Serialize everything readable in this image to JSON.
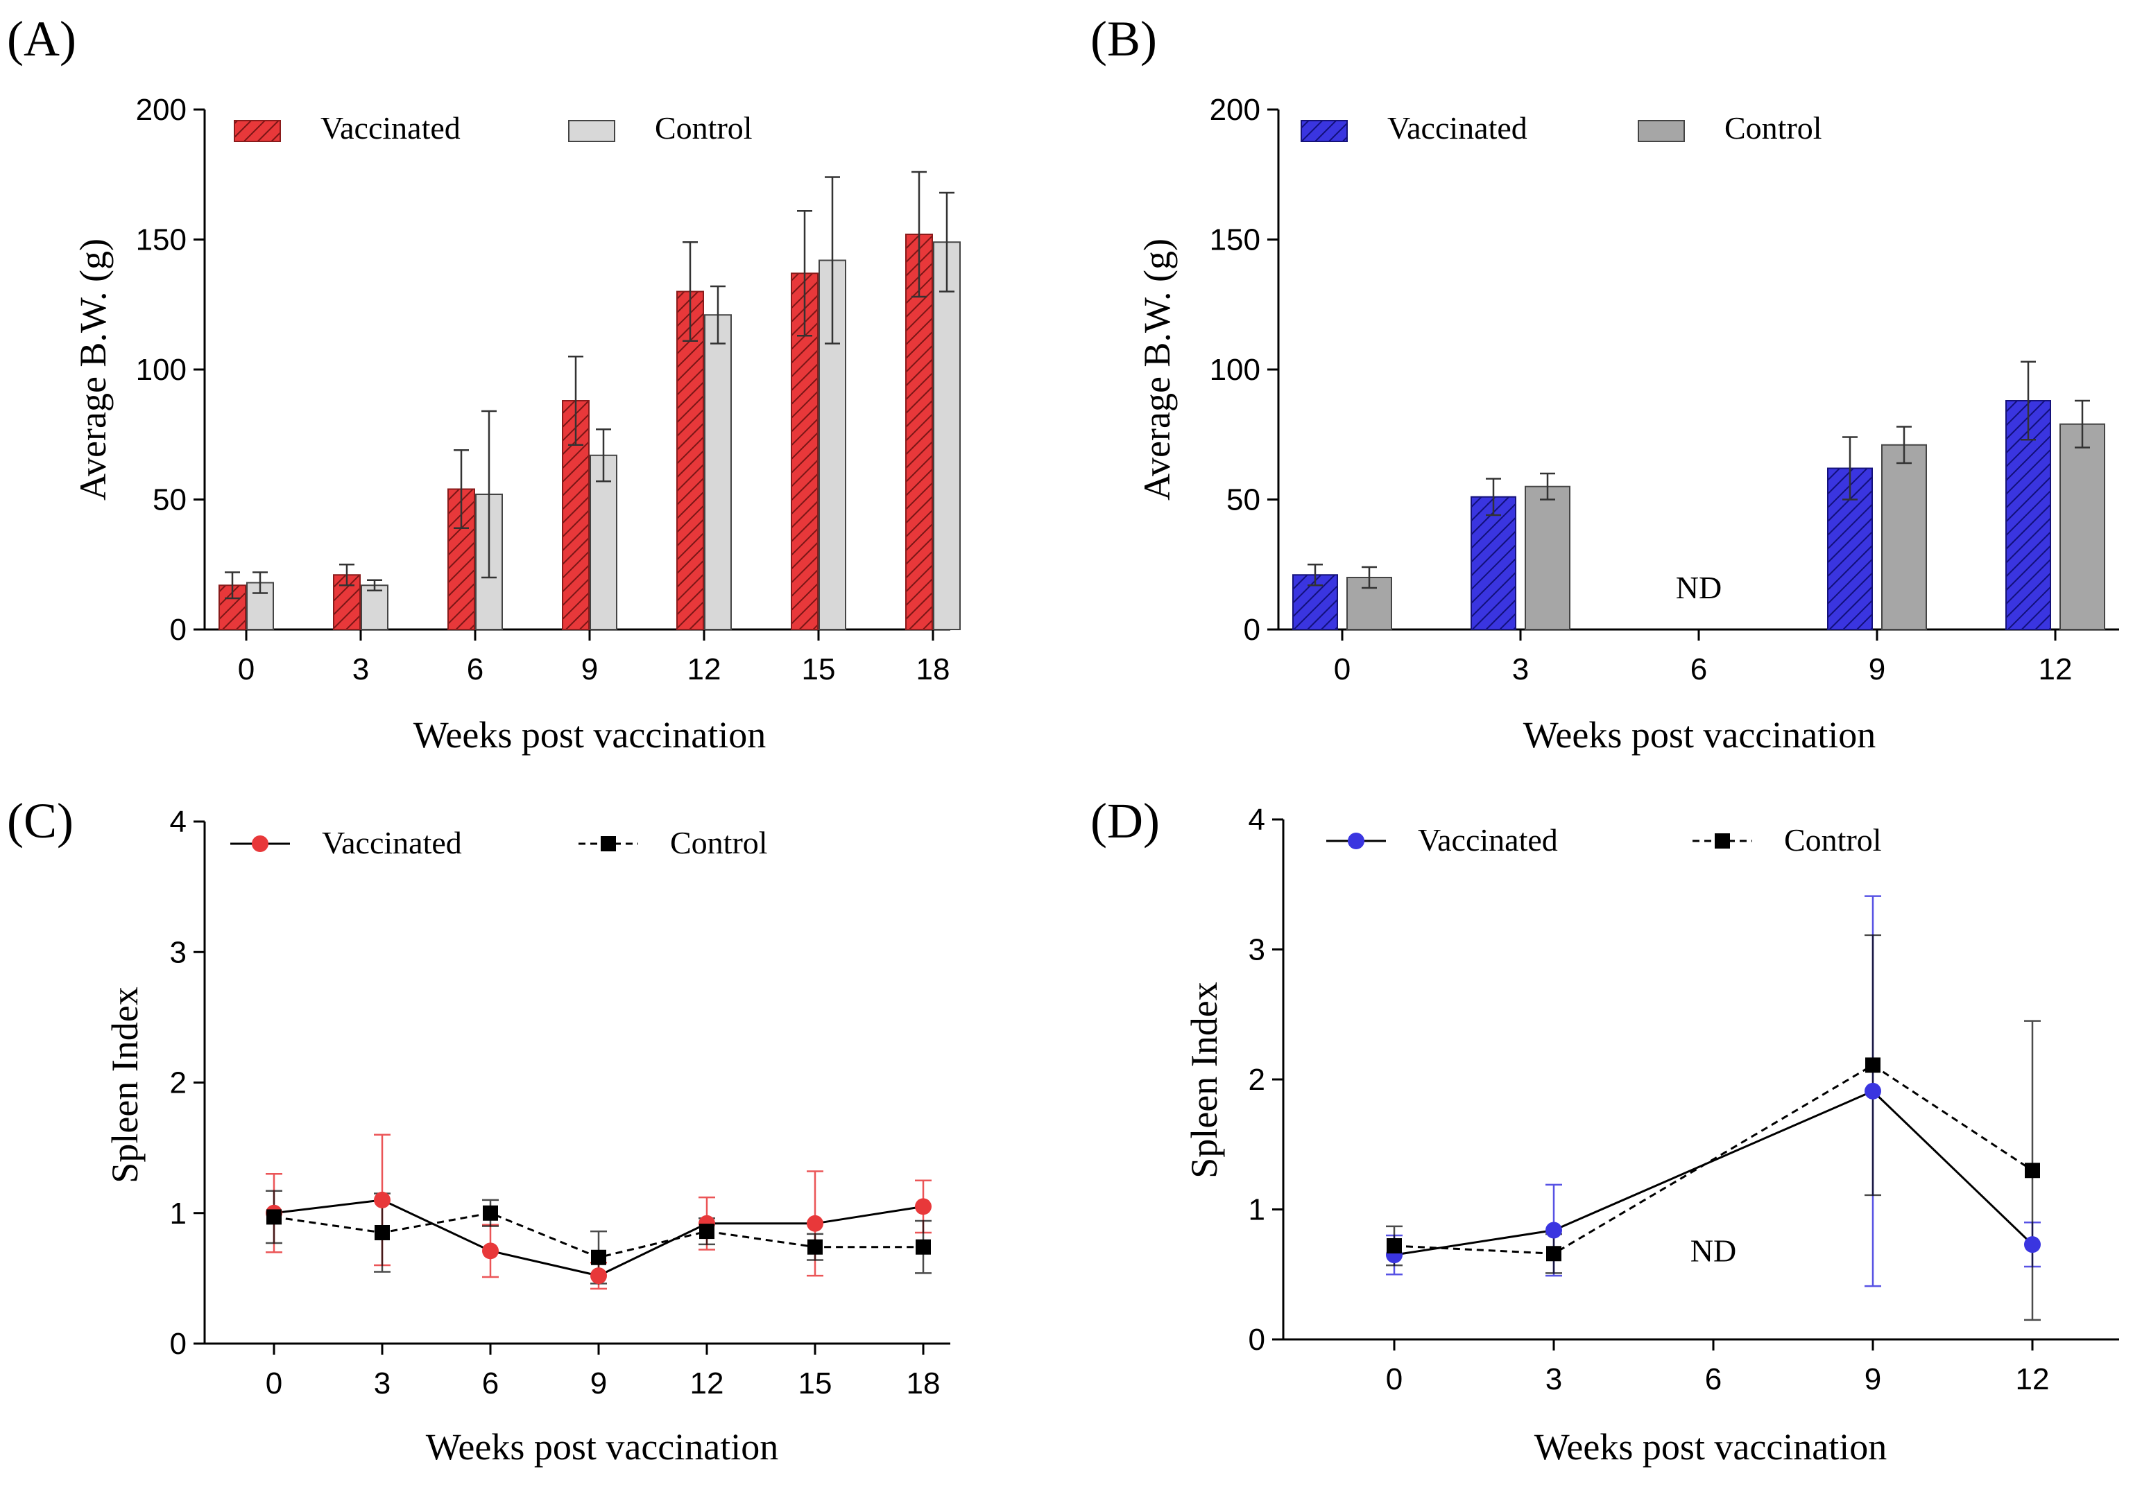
{
  "colors": {
    "red": "#e8383a",
    "red_stroke": "#8a1b1b",
    "light_grey": "#d8d8d8",
    "blue": "#3a35e0",
    "blue_stroke": "#15127a",
    "grey": "#a6a6a6",
    "black": "#000000"
  },
  "chart_data": [
    {
      "id": "A",
      "panel_label": "(A)",
      "type": "bar",
      "categories": [
        "0",
        "3",
        "6",
        "9",
        "12",
        "15",
        "18"
      ],
      "xlabel": "Weeks post vaccination",
      "ylabel": "Average B.W. (g)",
      "ylim": [
        0,
        200
      ],
      "yticks": [
        "0",
        "50",
        "100",
        "150",
        "200"
      ],
      "legend": [
        "Vaccinated",
        "Control"
      ],
      "nd_label": "",
      "series": [
        {
          "name": "Vaccinated",
          "pattern": "hatch",
          "color": "#e8383a",
          "stroke": "#8a1b1b",
          "values": [
            17,
            21,
            54,
            88,
            130,
            137,
            152
          ],
          "errors": [
            5,
            4,
            15,
            17,
            19,
            24,
            24
          ]
        },
        {
          "name": "Control",
          "pattern": "solid",
          "color": "#d8d8d8",
          "stroke": "#444444",
          "values": [
            18,
            17,
            52,
            67,
            121,
            142,
            149
          ],
          "errors": [
            4,
            2,
            32,
            10,
            11,
            32,
            19
          ]
        }
      ]
    },
    {
      "id": "B",
      "panel_label": "(B)",
      "type": "bar",
      "categories": [
        "0",
        "3",
        "6",
        "9",
        "12"
      ],
      "xlabel": "Weeks post vaccination",
      "ylabel": "Average B.W. (g)",
      "ylim": [
        0,
        200
      ],
      "yticks": [
        "0",
        "50",
        "100",
        "150",
        "200"
      ],
      "legend": [
        "Vaccinated",
        "Control"
      ],
      "nd_label": "ND",
      "nd_category": "6",
      "series": [
        {
          "name": "Vaccinated",
          "pattern": "hatch",
          "color": "#3a35e0",
          "stroke": "#15127a",
          "values": [
            21,
            51,
            null,
            62,
            88
          ],
          "errors": [
            4,
            7,
            null,
            12,
            15
          ]
        },
        {
          "name": "Control",
          "pattern": "solid",
          "color": "#a6a6a6",
          "stroke": "#444444",
          "values": [
            20,
            55,
            null,
            71,
            79
          ],
          "errors": [
            4,
            5,
            null,
            7,
            9
          ]
        }
      ]
    },
    {
      "id": "C",
      "panel_label": "(C)",
      "type": "line",
      "categories": [
        "0",
        "3",
        "6",
        "9",
        "12",
        "15",
        "18"
      ],
      "xlabel": "Weeks post vaccination",
      "ylabel": "Spleen Index",
      "ylim": [
        0,
        4
      ],
      "yticks": [
        "0",
        "1",
        "2",
        "3",
        "4"
      ],
      "legend": [
        "Vaccinated",
        "Control"
      ],
      "nd_label": "",
      "series": [
        {
          "name": "Vaccinated",
          "marker": "circle",
          "dash": false,
          "color": "#e8383a",
          "line_color": "#000000",
          "values": [
            1.0,
            1.1,
            0.71,
            0.52,
            0.92,
            0.92,
            1.05
          ],
          "errors": [
            0.3,
            0.5,
            0.2,
            0.1,
            0.2,
            0.4,
            0.2
          ]
        },
        {
          "name": "Control",
          "marker": "square",
          "dash": true,
          "color": "#000000",
          "line_color": "#000000",
          "values": [
            0.97,
            0.85,
            1.0,
            0.66,
            0.86,
            0.74,
            0.74
          ],
          "errors": [
            0.2,
            0.3,
            0.1,
            0.2,
            0.1,
            0.1,
            0.2
          ]
        }
      ]
    },
    {
      "id": "D",
      "panel_label": "(D)",
      "type": "line",
      "categories": [
        "0",
        "3",
        "6",
        "9",
        "12"
      ],
      "xlabel": "Weeks post vaccination",
      "ylabel": "Spleen Index",
      "ylim": [
        0,
        4
      ],
      "yticks": [
        "0",
        "1",
        "2",
        "3",
        "4"
      ],
      "legend": [
        "Vaccinated",
        "Control"
      ],
      "nd_label": "ND",
      "nd_category": "6",
      "series": [
        {
          "name": "Vaccinated",
          "marker": "circle",
          "dash": false,
          "color": "#3a35e0",
          "line_color": "#000000",
          "values": [
            0.65,
            0.84,
            null,
            1.91,
            0.73
          ],
          "errors": [
            0.15,
            0.35,
            null,
            1.5,
            0.17
          ]
        },
        {
          "name": "Control",
          "marker": "square",
          "dash": true,
          "color": "#000000",
          "line_color": "#000000",
          "values": [
            0.72,
            0.66,
            null,
            2.11,
            1.3
          ],
          "errors": [
            0.15,
            0.15,
            null,
            1.0,
            1.15
          ]
        }
      ]
    }
  ]
}
